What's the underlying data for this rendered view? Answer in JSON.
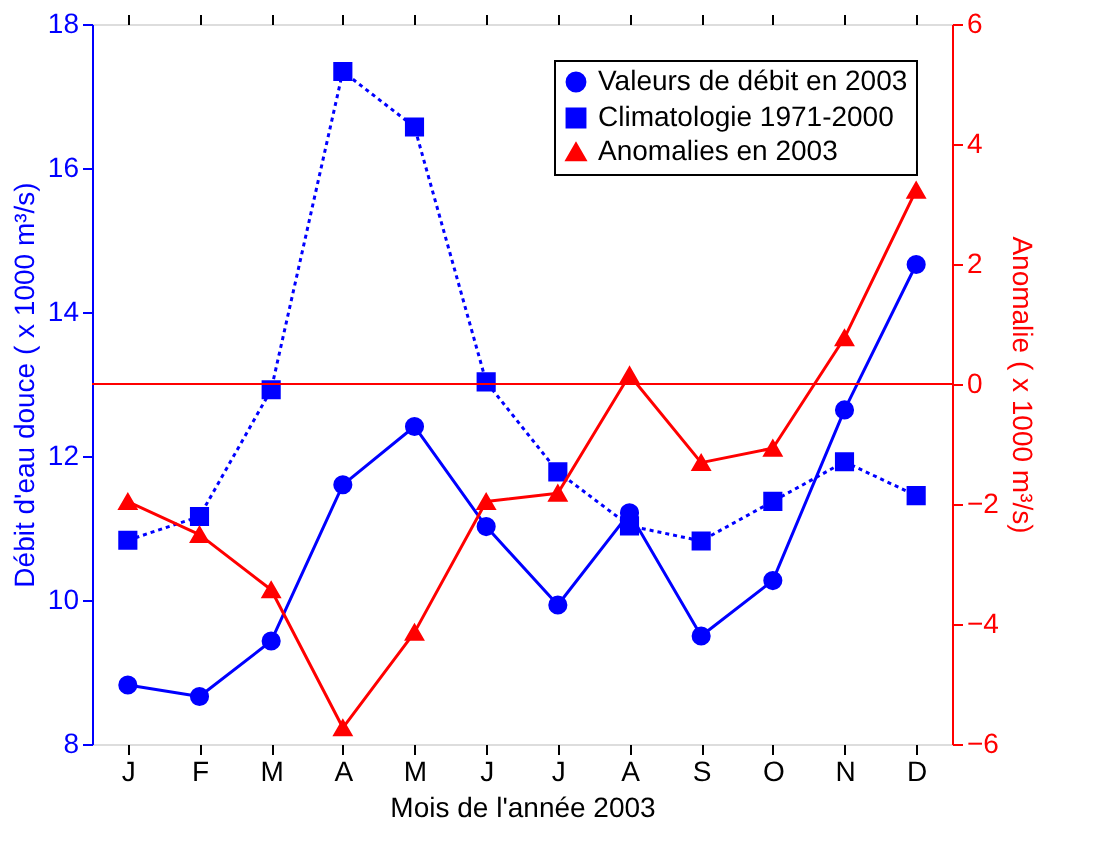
{
  "chart_data": {
    "type": "line",
    "xlabel": "Mois de l'année 2003",
    "ylabel": "Débit d'eau douce ( x 1000 m³/s)",
    "y2label": "Anomalie ( x 1000 m³/s)",
    "categories": [
      "J",
      "F",
      "M",
      "A",
      "M",
      "J",
      "J",
      "A",
      "S",
      "O",
      "N",
      "D"
    ],
    "series": [
      {
        "name": "Valeurs de débit en 2003",
        "color": "#0000ff",
        "marker": "circle",
        "line_style": "solid",
        "axis": "y",
        "values": [
          8.82,
          8.66,
          9.43,
          11.6,
          12.41,
          11.02,
          9.93,
          11.21,
          9.5,
          10.27,
          12.64,
          14.66
        ]
      },
      {
        "name": "Climatologie 1971-2000",
        "color": "#0000ff",
        "marker": "square",
        "line_style": "dotted",
        "axis": "y",
        "values": [
          10.83,
          11.16,
          12.92,
          17.34,
          16.57,
          13.03,
          11.78,
          11.03,
          10.82,
          11.37,
          11.92,
          11.45
        ]
      },
      {
        "name": "Anomalies en 2003",
        "color": "#ff0000",
        "marker": "triangle",
        "line_style": "solid",
        "axis": "y2",
        "values": [
          -1.96,
          -2.51,
          -3.43,
          -5.73,
          -4.14,
          -1.96,
          -1.82,
          0.15,
          -1.31,
          -1.07,
          0.77,
          3.23
        ]
      }
    ],
    "ylim": [
      8,
      18
    ],
    "yticks": [
      8,
      10,
      12,
      14,
      16,
      18
    ],
    "y2lim": [
      -6,
      6
    ],
    "y2ticks": [
      -6,
      -4,
      -2,
      0,
      2,
      4,
      6
    ],
    "ref_lines": [
      {
        "axis": "y2",
        "value": 0,
        "label": null,
        "color": "#ff0000"
      }
    ],
    "grid": false,
    "legend": "top right"
  }
}
